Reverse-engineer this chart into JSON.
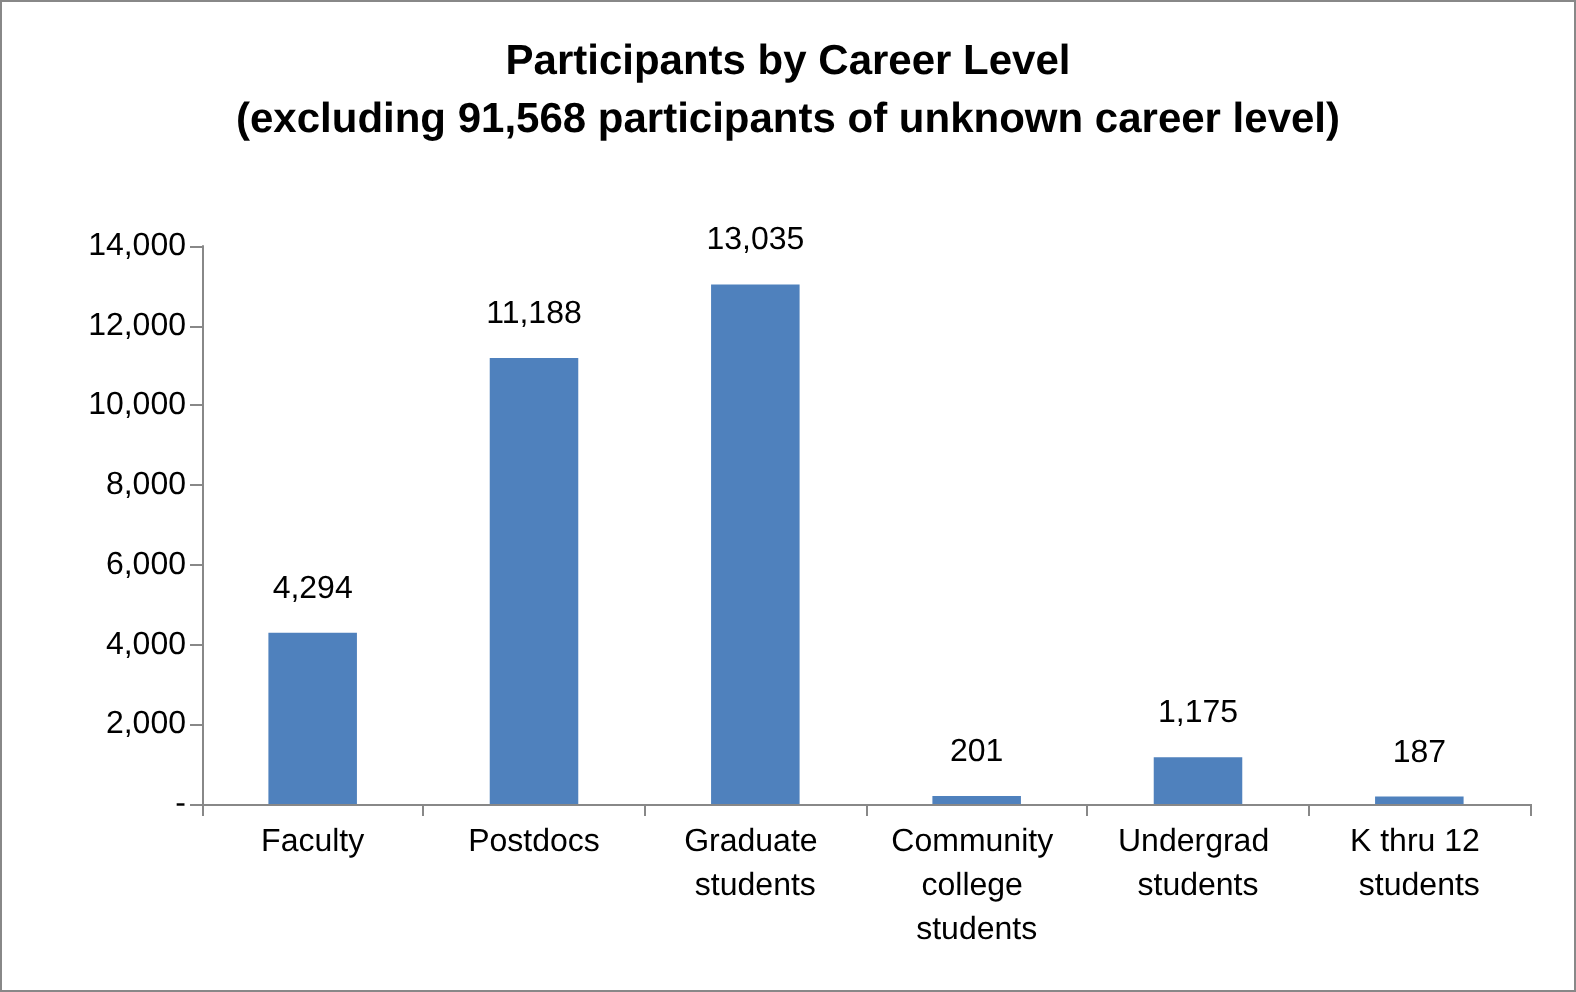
{
  "chart_data": {
    "type": "bar",
    "title": "Participants by Career Level",
    "subtitle": "(excluding 91,568 participants of unknown career level)",
    "categories": [
      "Faculty",
      "Postdocs",
      "Graduate students",
      "Community college students",
      "Undergrad students",
      "K thru 12 students"
    ],
    "values": [
      4294,
      11188,
      13035,
      201,
      1175,
      187
    ],
    "color": "#4f81bd",
    "value_labels": [
      "4,294",
      "11,188",
      "13,035",
      "201",
      "1,175",
      "187"
    ],
    "ylim": [
      0,
      14000
    ],
    "yticks": [
      {
        "value": 0,
        "label": "-"
      },
      {
        "value": 2000,
        "label": "2,000"
      },
      {
        "value": 4000,
        "label": "4,000"
      },
      {
        "value": 6000,
        "label": "6,000"
      },
      {
        "value": 8000,
        "label": "8,000"
      },
      {
        "value": 10000,
        "label": "10,000"
      },
      {
        "value": 12000,
        "label": "12,000"
      },
      {
        "value": 14000,
        "label": "14,000"
      }
    ],
    "grid": false
  }
}
